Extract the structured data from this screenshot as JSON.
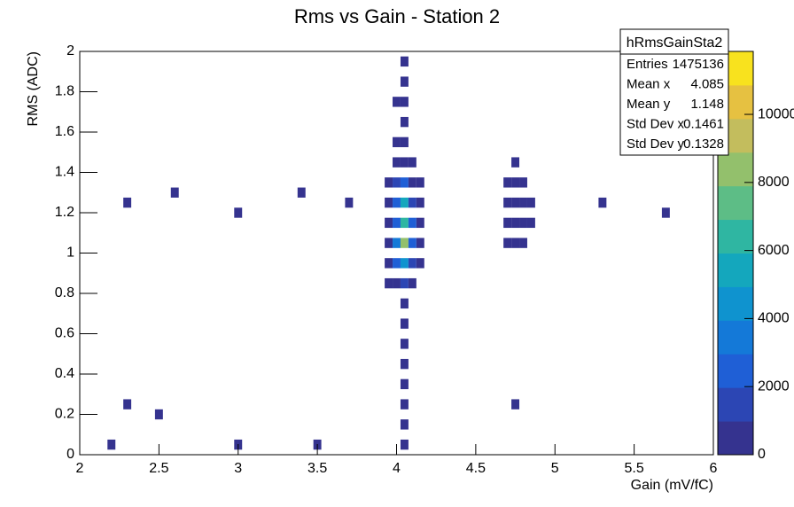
{
  "chart_data": {
    "type": "heatmap",
    "title": "Rms vs Gain - Station 2",
    "x_label": "Gain (mV/fC)",
    "y_label": "RMS (ADC)",
    "xlim": [
      2,
      6
    ],
    "xticks": [
      2,
      2.5,
      3,
      3.5,
      4,
      4.5,
      5,
      5.5,
      6
    ],
    "ylim": [
      0,
      2
    ],
    "yticks": [
      0,
      0.2,
      0.4,
      0.6,
      0.8,
      1,
      1.2,
      1.4,
      1.6,
      1.8,
      2
    ],
    "zlim": [
      0,
      11850
    ],
    "zticks": [
      0,
      2000,
      4000,
      6000,
      8000,
      10000
    ],
    "palette": [
      "#35338f",
      "#2c46b4",
      "#1f5fd6",
      "#1479d8",
      "#0f93cf",
      "#14a7bd",
      "#2fb6a2",
      "#5dbd86",
      "#93c06c",
      "#c3bd5d",
      "#e6c141",
      "#f8e21e"
    ],
    "x": [
      3.95,
      3.95,
      3.95,
      3.95,
      3.95,
      3.95,
      4.0,
      4.0,
      4.0,
      4.0,
      4.0,
      4.0,
      4.0,
      4.05,
      4.05,
      4.05,
      4.05,
      4.05,
      4.05,
      4.05,
      4.1,
      4.1,
      4.1,
      4.1,
      4.1,
      4.1,
      4.1,
      4.15,
      4.15,
      4.15,
      4.15,
      4.15,
      4.05,
      4.05,
      4.05,
      4.05,
      4.05,
      4.0,
      4.0,
      4.05,
      4.05,
      4.05,
      4.05,
      4.05,
      4.05,
      4.05,
      4.05,
      4.75,
      4.75,
      4.75,
      4.75,
      4.75,
      4.7,
      4.7,
      4.7,
      4.7,
      4.8,
      4.8,
      4.8,
      4.8,
      4.85,
      4.85,
      2.3,
      2.6,
      3.0,
      3.4,
      3.7,
      5.3,
      5.7,
      2.3,
      2.5,
      4.75,
      2.2,
      3.0,
      3.5
    ],
    "y": [
      0.85,
      0.95,
      1.05,
      1.15,
      1.25,
      1.35,
      0.85,
      0.95,
      1.05,
      1.15,
      1.25,
      1.35,
      1.45,
      0.85,
      0.95,
      1.05,
      1.15,
      1.25,
      1.35,
      1.45,
      0.85,
      0.95,
      1.05,
      1.15,
      1.25,
      1.35,
      1.45,
      0.95,
      1.05,
      1.15,
      1.25,
      1.35,
      1.55,
      1.65,
      1.75,
      1.85,
      1.95,
      1.55,
      1.75,
      0.05,
      0.15,
      0.25,
      0.35,
      0.45,
      0.55,
      0.65,
      0.75,
      1.05,
      1.15,
      1.25,
      1.35,
      1.45,
      1.05,
      1.15,
      1.25,
      1.35,
      1.05,
      1.15,
      1.25,
      1.35,
      1.15,
      1.25,
      1.25,
      1.3,
      1.2,
      1.3,
      1.25,
      1.25,
      1.2,
      0.25,
      0.2,
      0.25,
      0.05,
      0.05,
      0.05
    ],
    "values": [
      300,
      500,
      600,
      600,
      500,
      300,
      800,
      2000,
      3000,
      2800,
      2500,
      1200,
      400,
      1500,
      4500,
      8500,
      6500,
      5500,
      2500,
      600,
      600,
      1500,
      2500,
      2200,
      1800,
      800,
      300,
      300,
      400,
      400,
      400,
      300,
      200,
      150,
      100,
      80,
      60,
      100,
      60,
      150,
      100,
      60,
      50,
      40,
      40,
      60,
      100,
      400,
      500,
      500,
      450,
      200,
      300,
      350,
      350,
      300,
      300,
      350,
      350,
      300,
      200,
      200,
      10,
      10,
      10,
      10,
      20,
      10,
      10,
      10,
      10,
      10,
      10,
      20,
      20
    ],
    "stats": {
      "title": "hRmsGainSta2",
      "rows": [
        [
          "Entries",
          1475136
        ],
        [
          "Mean x",
          4.085
        ],
        [
          "Mean y",
          1.148
        ],
        [
          "Std Dev x",
          0.1461
        ],
        [
          "Std Dev y",
          0.1328
        ]
      ]
    }
  }
}
